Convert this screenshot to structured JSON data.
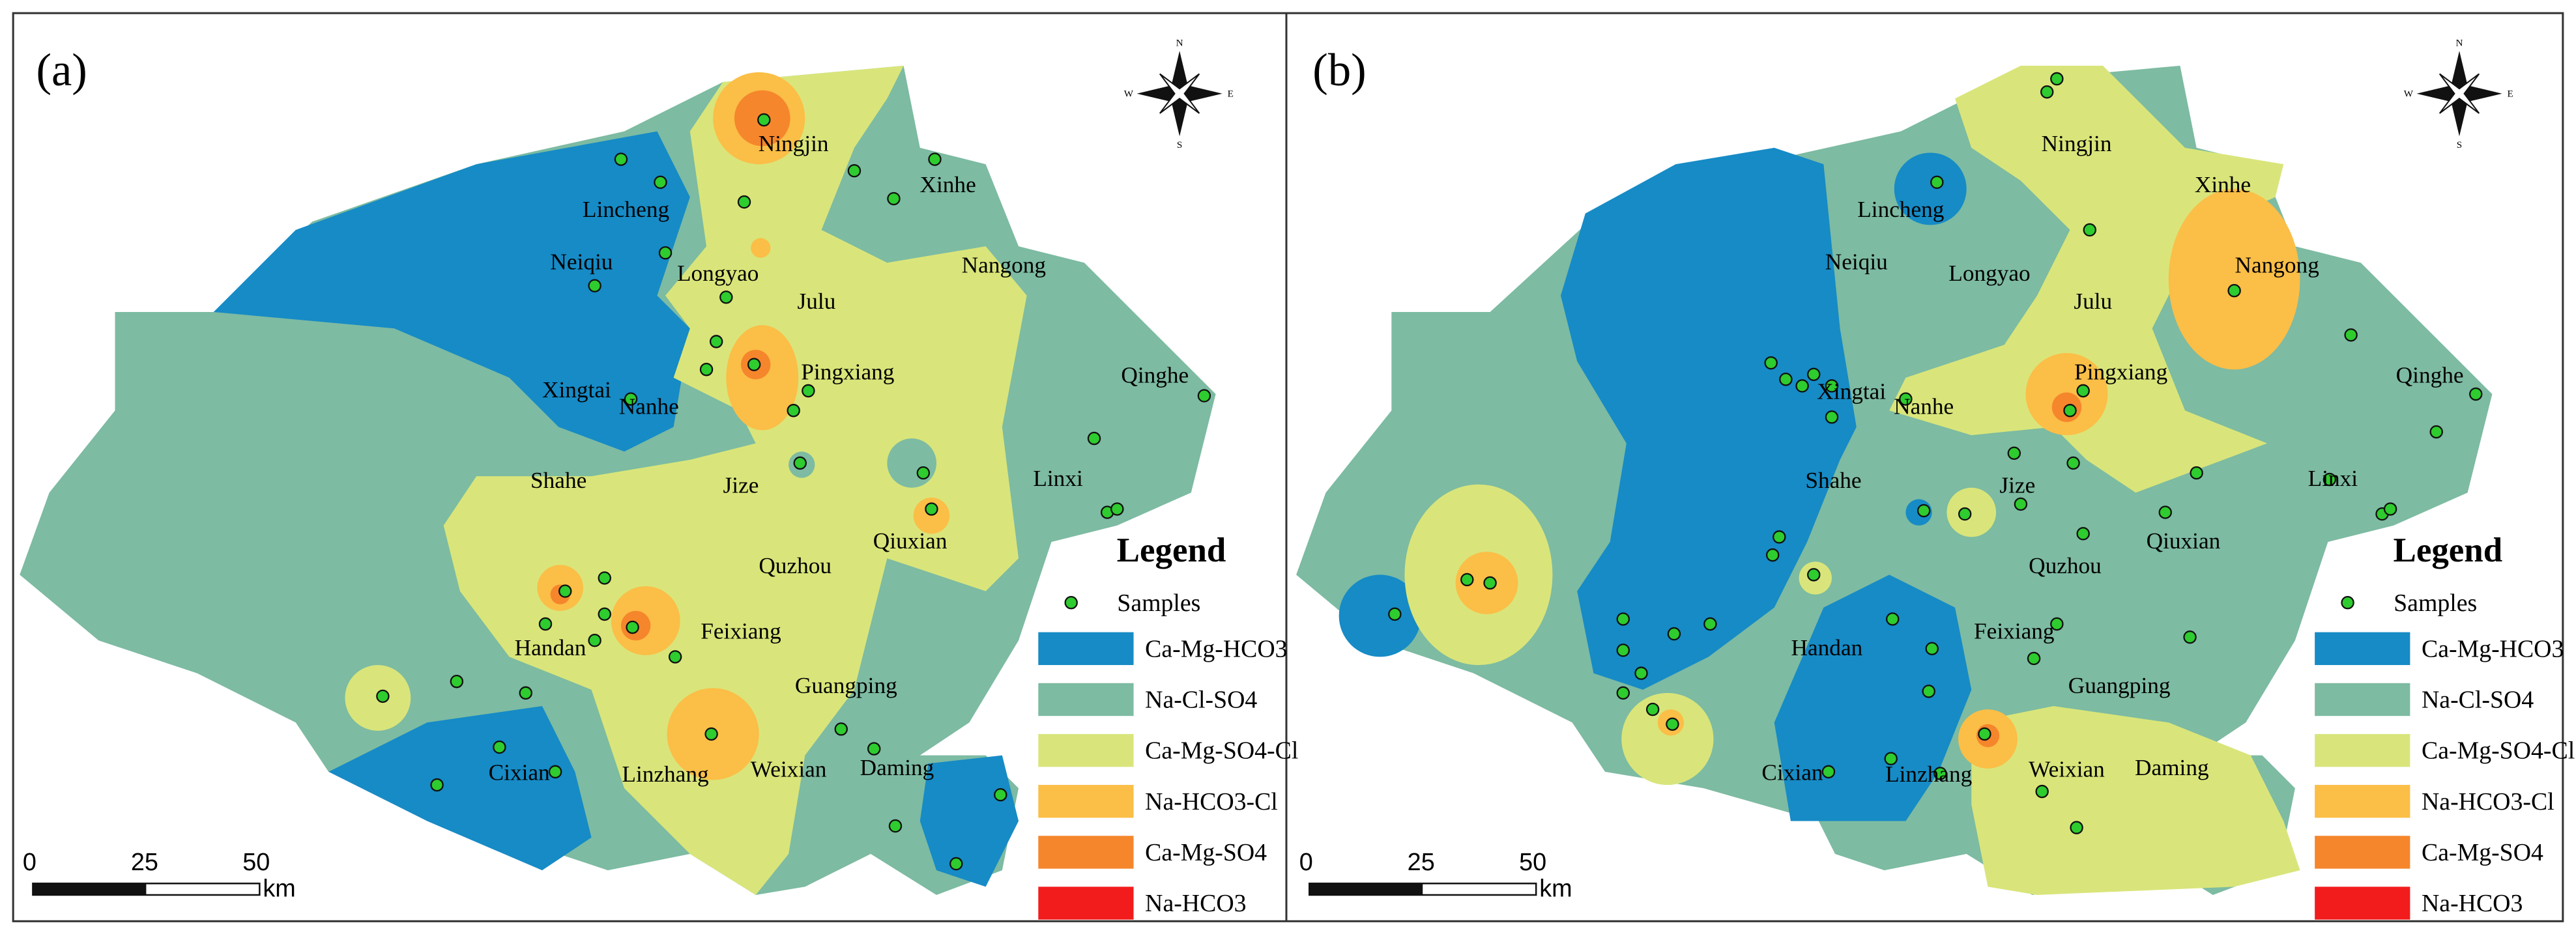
{
  "panels": [
    {
      "label": "(a)",
      "places": [
        "Ningjin",
        "Lincheng",
        "Neiqiu",
        "Longyao",
        "Nangong",
        "Xinhe",
        "Julu",
        "Pingxiang",
        "Qinghe",
        "Xingtai",
        "Nanhe",
        "Shahe",
        "Jize",
        "Linxi",
        "Qiuxian",
        "Quzhou",
        "Handan",
        "Feixiang",
        "Guangping",
        "Cixian",
        "Linzhang",
        "Weixian",
        "Daming"
      ],
      "legend": {
        "title": "Legend",
        "items": [
          "Samples",
          "Ca-Mg-HCO3",
          "Na-Cl-SO4",
          "Ca-Mg-SO4-Cl",
          "Na-HCO3-Cl",
          "Ca-Mg-SO4",
          "Na-HCO3"
        ]
      },
      "scale": {
        "ticks": [
          0,
          25,
          50
        ],
        "unit": "km"
      },
      "compass": [
        "N",
        "E",
        "S",
        "W"
      ]
    },
    {
      "label": "(b)",
      "places": [
        "Ningjin",
        "Lincheng",
        "Neiqiu",
        "Longyao",
        "Nangong",
        "Xinhe",
        "Julu",
        "Pingxiang",
        "Qinghe",
        "Xingtai",
        "Nanhe",
        "Shahe",
        "Jize",
        "Linxi",
        "Qiuxian",
        "Quzhou",
        "Handan",
        "Feixiang",
        "Guangping",
        "Cixian",
        "Linzhang",
        "Weixian",
        "Daming"
      ],
      "legend": {
        "title": "Legend",
        "items": [
          "Samples",
          "Ca-Mg-HCO3",
          "Na-Cl-SO4",
          "Ca-Mg-SO4-Cl",
          "Na-HCO3-Cl",
          "Ca-Mg-SO4",
          "Na-HCO3"
        ]
      },
      "scale": {
        "ticks": [
          0,
          25,
          50
        ],
        "unit": "km"
      },
      "compass": [
        "N",
        "E",
        "S",
        "W"
      ]
    }
  ]
}
